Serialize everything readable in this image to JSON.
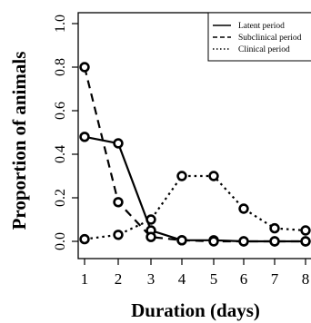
{
  "chart_data": {
    "type": "line",
    "title": "",
    "xlabel": "Duration (days)",
    "ylabel": "Proportion of animals",
    "x": [
      1,
      2,
      3,
      4,
      5,
      6,
      7,
      8
    ],
    "xlim": [
      1,
      8
    ],
    "ylim": [
      0,
      1
    ],
    "x_ticks": [
      "1",
      "2",
      "3",
      "4",
      "5",
      "6",
      "7",
      "8"
    ],
    "y_ticks": [
      "0.0",
      "0.2",
      "0.4",
      "0.6",
      "0.8",
      "1.0"
    ],
    "y_tick_values": [
      0,
      0.2,
      0.4,
      0.6,
      0.8,
      1.0
    ],
    "grid": false,
    "legend_position": "top-right",
    "series": [
      {
        "name": "Latent period",
        "line_style": "solid",
        "values": [
          0.48,
          0.45,
          0.05,
          0.005,
          0.005,
          0.0,
          0.0,
          0.0
        ]
      },
      {
        "name": "Subclinical period",
        "line_style": "dashed",
        "values": [
          0.8,
          0.18,
          0.02,
          0.005,
          0.0,
          0.0,
          0.0,
          0.0
        ]
      },
      {
        "name": "Clinical period",
        "line_style": "dotted",
        "values": [
          0.01,
          0.03,
          0.1,
          0.3,
          0.3,
          0.15,
          0.06,
          0.05
        ]
      }
    ],
    "colors": {
      "line": "#000000",
      "background": "#ffffff"
    }
  }
}
